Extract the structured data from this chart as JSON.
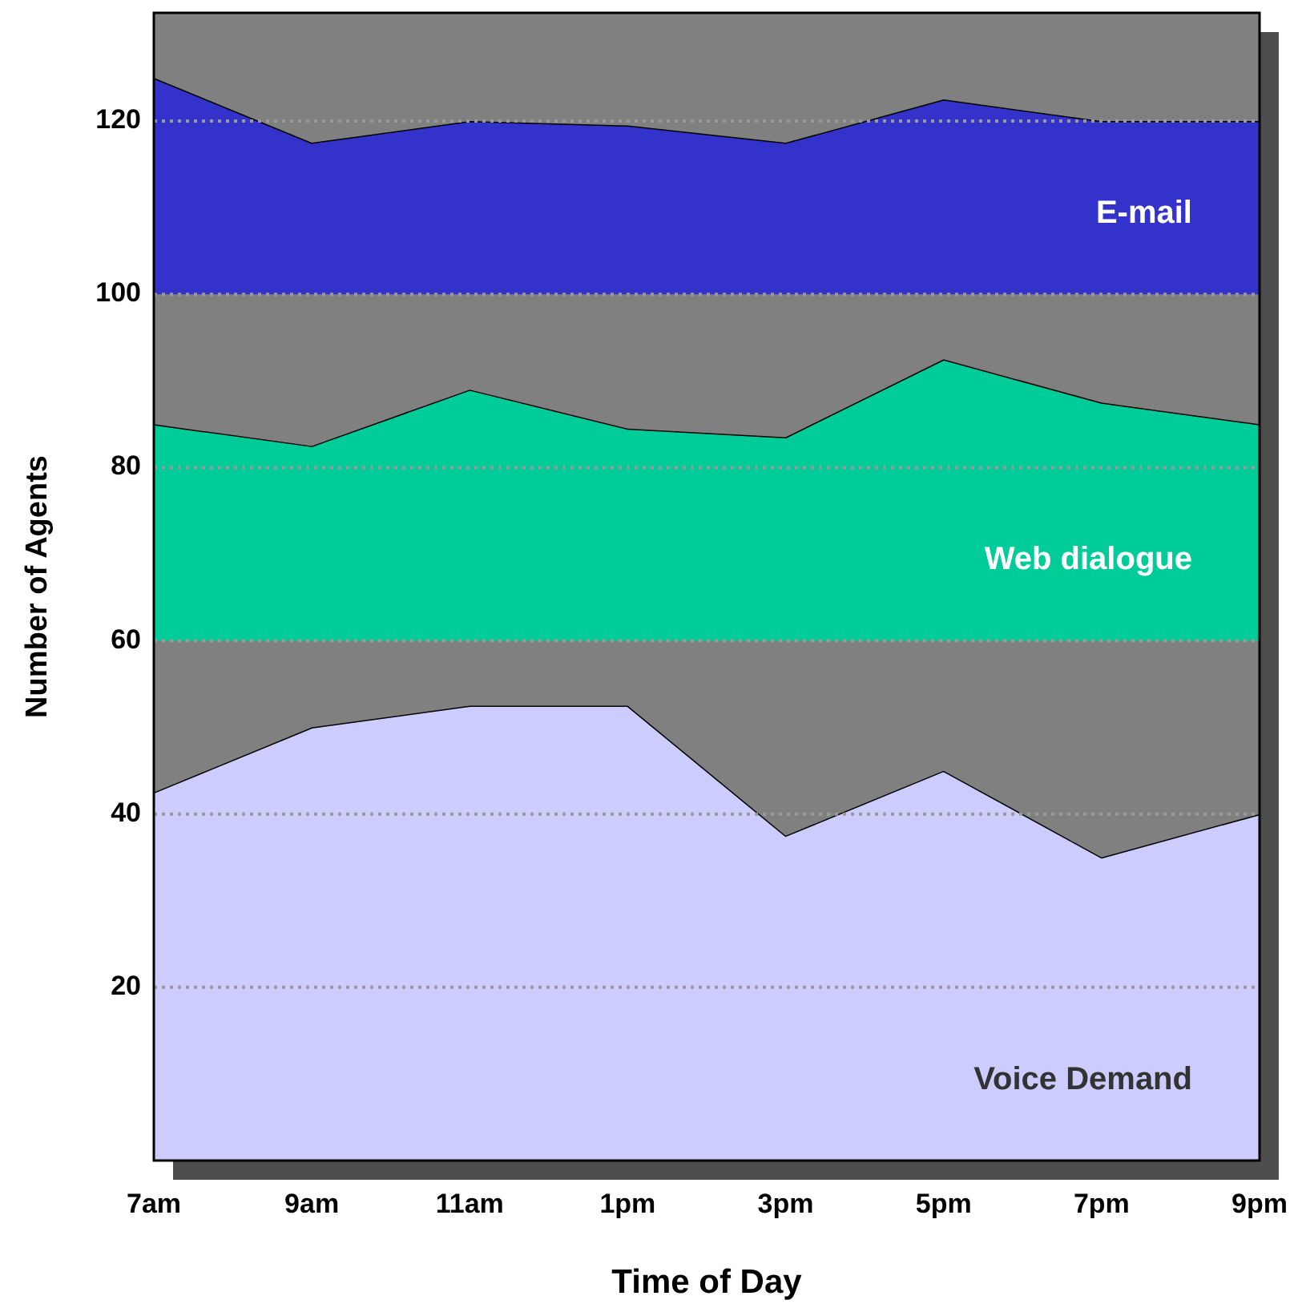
{
  "chart_data": {
    "type": "area",
    "stacked": true,
    "xlabel": "Time of Day",
    "ylabel": "Number of Agents",
    "categories": [
      "7am",
      "9am",
      "11am",
      "1pm",
      "3pm",
      "5pm",
      "7pm",
      "9pm"
    ],
    "series": [
      {
        "name": "Voice Demand",
        "color": "#ccccff",
        "values": [
          42.5,
          50,
          52.5,
          52.5,
          37.5,
          45,
          35,
          40
        ]
      },
      {
        "color": "#808080",
        "values": [
          17.5,
          10,
          7.5,
          7.5,
          22.5,
          15,
          25,
          20
        ]
      },
      {
        "name": "Web dialogue",
        "color": "#00cc99",
        "values": [
          25,
          22.5,
          29,
          24.5,
          23.5,
          32.5,
          27.5,
          25
        ]
      },
      {
        "color": "#808080",
        "values": [
          15,
          17.5,
          11,
          15.5,
          16.5,
          7.5,
          12.5,
          15
        ]
      },
      {
        "name": "E-mail",
        "color": "#3333cc",
        "values": [
          25,
          17.5,
          20,
          19.5,
          17.5,
          22.5,
          20,
          20
        ]
      },
      {
        "color": "#808080",
        "values": [
          7.5,
          15,
          12.5,
          13,
          15,
          10,
          12.5,
          12.5
        ]
      }
    ],
    "ylim": [
      0,
      132.5
    ],
    "yticks": [
      20,
      40,
      60,
      80,
      100,
      120
    ],
    "grid": "y"
  }
}
